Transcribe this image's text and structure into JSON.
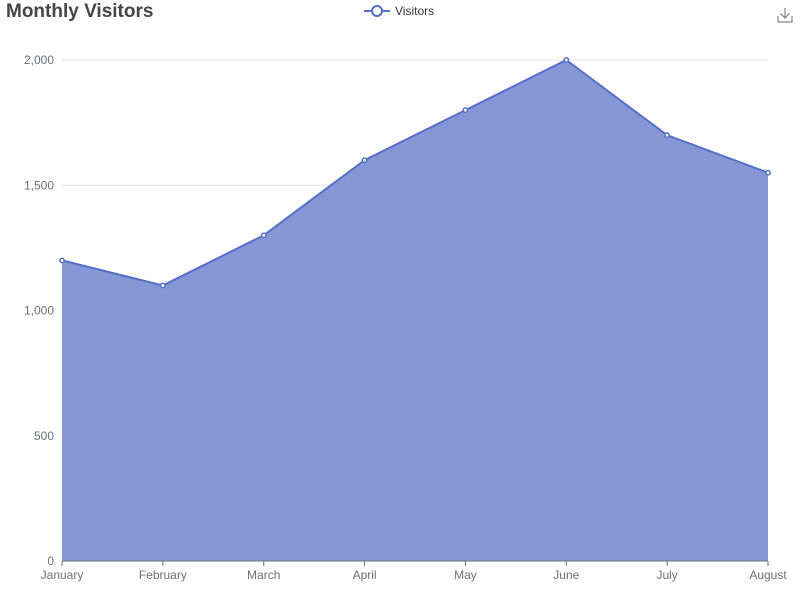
{
  "chart_data": {
    "type": "area",
    "title": "Monthly Visitors",
    "categories": [
      "January",
      "February",
      "March",
      "April",
      "May",
      "June",
      "July",
      "August"
    ],
    "series": [
      {
        "name": "Visitors",
        "values": [
          1200,
          1100,
          1300,
          1600,
          1800,
          2000,
          1700,
          1550
        ]
      }
    ],
    "xlabel": "",
    "ylabel": "",
    "ylim": [
      0,
      2000
    ],
    "yticks": [
      0,
      500,
      1000,
      1500,
      2000
    ],
    "ytick_labels": [
      "0",
      "500",
      "1,000",
      "1,500",
      "2,000"
    ],
    "grid": true,
    "legend_position": "top-center",
    "colors": {
      "line": "#5470c6",
      "area": "#8797d6",
      "grid": "#e0e0e0",
      "axis": "#6e7079",
      "title": "#464646"
    }
  },
  "toolbox": {
    "download_icon": "download-icon"
  }
}
